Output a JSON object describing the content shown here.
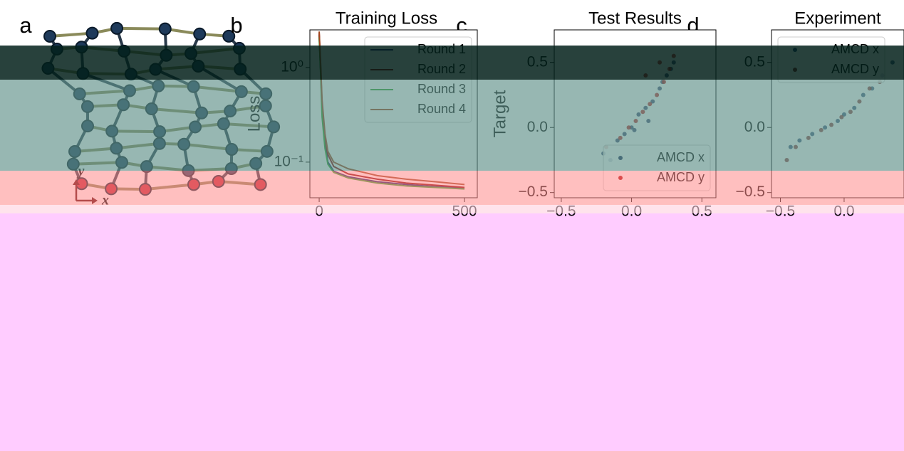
{
  "panel_labels": [
    "a",
    "b",
    "c",
    "d"
  ],
  "diagram": {
    "axis_labels": [
      "x",
      "y"
    ]
  },
  "chart_data": [
    {
      "type": "line",
      "title": "Training Loss",
      "ylabel": "Loss",
      "log_y": true,
      "x": [
        0,
        5,
        10,
        20,
        30,
        50,
        100,
        200,
        300,
        400,
        500
      ],
      "xlim": [
        -32,
        544
      ],
      "xticks": [
        0,
        500
      ],
      "ylim": [
        0.042,
        2.5
      ],
      "yticks": [
        {
          "value": 1,
          "label": "10⁰"
        },
        {
          "value": 0.1,
          "label": "10⁻¹"
        }
      ],
      "legend": "upper right",
      "series": [
        {
          "name": "Round 1",
          "color": "#1a1a6e",
          "values": [
            2.2,
            0.9,
            0.35,
            0.16,
            0.1,
            0.08,
            0.07,
            0.062,
            0.058,
            0.055,
            0.053
          ]
        },
        {
          "name": "Round 2",
          "color": "#8b0000",
          "values": [
            2.3,
            1.0,
            0.4,
            0.18,
            0.12,
            0.09,
            0.075,
            0.066,
            0.06,
            0.057,
            0.054
          ]
        },
        {
          "name": "Round 3",
          "color": "#2ca02c",
          "values": [
            2.1,
            0.85,
            0.3,
            0.14,
            0.095,
            0.078,
            0.068,
            0.06,
            0.056,
            0.054,
            0.052
          ]
        },
        {
          "name": "Round 4",
          "color": "#a0441a",
          "values": [
            2.4,
            1.1,
            0.45,
            0.2,
            0.13,
            0.1,
            0.085,
            0.072,
            0.066,
            0.062,
            0.058
          ]
        }
      ]
    },
    {
      "type": "scatter",
      "title": "Test Results",
      "ylabel": "Target",
      "xlim": [
        -0.55,
        0.6
      ],
      "xticks": [
        {
          "value": -0.5,
          "label": "−0.5"
        },
        {
          "value": 0,
          "label": "0.0"
        },
        0.5
      ],
      "ylim": [
        -0.54,
        0.75
      ],
      "yticks": [
        {
          "value": -0.5,
          "label": "−0.5"
        },
        {
          "value": 0,
          "label": "0.0"
        },
        0.5
      ],
      "legend": "lower right",
      "series": [
        {
          "name": "AMCD x",
          "color": "#1a2a5a",
          "x": [
            -0.2,
            -0.1,
            -0.05,
            0,
            0.05,
            0.1,
            0.15,
            0.2,
            0.25,
            0.3,
            -0.15,
            0.02,
            0.12,
            0.22,
            0.28
          ],
          "values": [
            -0.2,
            -0.1,
            -0.05,
            0,
            0.1,
            0.15,
            0.2,
            0.3,
            0.4,
            0.5,
            -0.25,
            -0.02,
            0.05,
            0.35,
            0.45
          ]
        },
        {
          "name": "AMCD y",
          "color": "#b00000",
          "x": [
            -0.18,
            -0.08,
            -0.02,
            0.03,
            0.08,
            0.13,
            0.18,
            0.23,
            0.27,
            0.3,
            0.1,
            0.2
          ],
          "values": [
            -0.15,
            -0.08,
            0,
            0.05,
            0.12,
            0.18,
            0.25,
            0.35,
            0.45,
            0.55,
            0.4,
            0.5
          ]
        }
      ]
    },
    {
      "type": "scatter",
      "title": "Experiment",
      "xlim": [
        -0.57,
        0.47
      ],
      "xticks": [
        {
          "value": -0.5,
          "label": "−0.5"
        },
        {
          "value": 0,
          "label": "0.0"
        }
      ],
      "ylim": [
        -0.54,
        0.75
      ],
      "yticks": [
        {
          "value": -0.5,
          "label": "−0.5"
        },
        {
          "value": 0,
          "label": "0.0"
        },
        0.5
      ],
      "legend": "upper left",
      "series": [
        {
          "name": "AMCD x",
          "color": "#1a3a6a",
          "x": [
            -0.42,
            -0.35,
            -0.25,
            -0.15,
            -0.05,
            0,
            0.08,
            0.15,
            0.22,
            0.3,
            0.38
          ],
          "values": [
            -0.15,
            -0.1,
            -0.05,
            0,
            0.05,
            0.1,
            0.15,
            0.25,
            0.3,
            0.4,
            0.5
          ]
        },
        {
          "name": "AMCD y",
          "color": "#7a1a1a",
          "x": [
            -0.45,
            -0.38,
            -0.28,
            -0.18,
            -0.1,
            -0.02,
            0.05,
            0.12,
            0.2,
            0.28
          ],
          "values": [
            -0.25,
            -0.15,
            -0.08,
            -0.02,
            0.02,
            0.08,
            0.12,
            0.2,
            0.3,
            0.35
          ]
        }
      ]
    }
  ]
}
